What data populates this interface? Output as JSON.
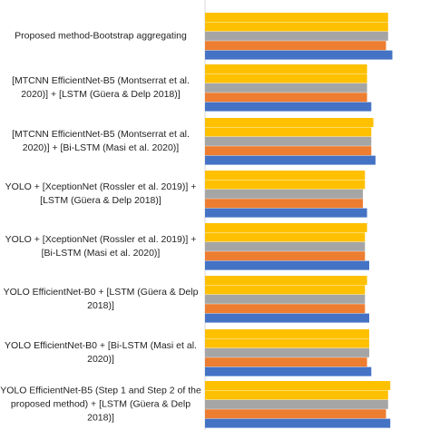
{
  "chart_data": {
    "type": "bar",
    "orientation": "horizontal",
    "categories": [
      "Proposed method-Bootstrap aggregating",
      "[MTCNN EfficientNet-B5  (Montserrat et al. 2020)] + [LSTM (Güera & Delp 2018)]",
      "[MTCNN EfficientNet-B5 (Montserrat et al. 2020)] + [Bi-LSTM (Masi et al. 2020)]",
      "YOLO + [XceptionNet (Rossler et al. 2019)] + [LSTM (Güera & Delp 2018)]",
      "YOLO + [XceptionNet (Rossler et al. 2019)] + [Bi-LSTM (Masi et al. 2020)]",
      "YOLO EfficientNet-B0 + [LSTM (Güera & Delp 2018)]",
      "YOLO EfficientNet-B0 + [Bi-LSTM (Masi et al. 2020)]",
      "YOLO EfficientNet-B5 (Step 1 and Step 2 of the proposed method) + [LSTM (Güera & Delp 2018)]"
    ],
    "series": [
      {
        "values": [
          0.89,
          0.79,
          0.81,
          0.77,
          0.78,
          0.78,
          0.79,
          0.88
        ]
      },
      {
        "values": [
          0.86,
          0.77,
          0.79,
          0.75,
          0.76,
          0.76,
          0.77,
          0.86
        ]
      },
      {
        "values": [
          0.87,
          0.77,
          0.79,
          0.75,
          0.76,
          0.76,
          0.78,
          0.87
        ]
      },
      {
        "values": [
          0.87,
          0.77,
          0.79,
          0.76,
          0.76,
          0.76,
          0.78,
          0.87
        ]
      },
      {
        "values": [
          0.87,
          0.77,
          0.8,
          0.76,
          0.77,
          0.77,
          0.78,
          0.88
        ]
      }
    ],
    "series_colors": [
      "#4472C4",
      "#ED7D31",
      "#A5A5A5",
      "#FFC000",
      "#FFC000"
    ],
    "xlim": [
      0,
      1
    ],
    "grid": false,
    "legend": "none"
  }
}
